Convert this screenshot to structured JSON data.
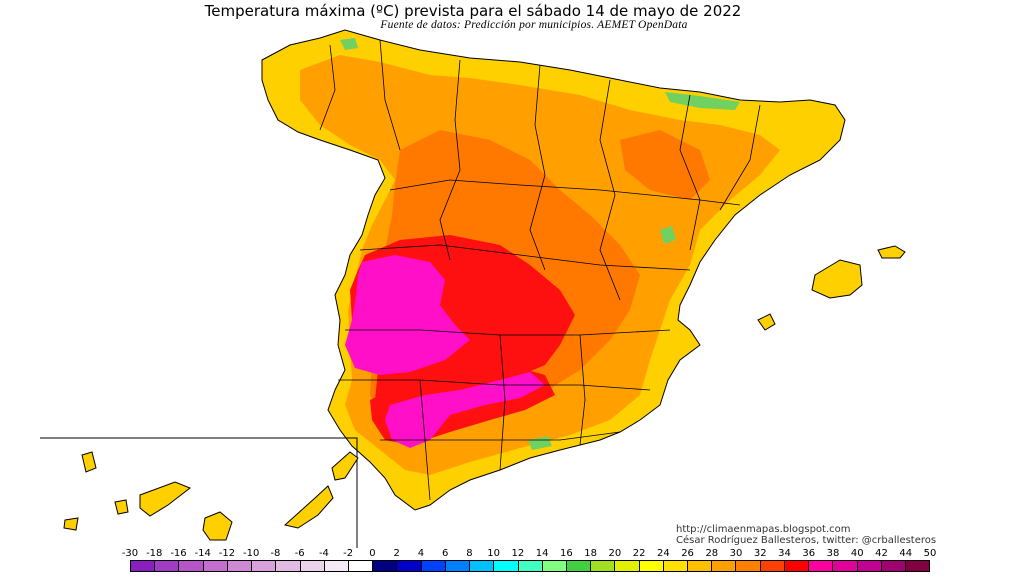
{
  "header": {
    "title": "Temperatura máxima (ºC) prevista para el sábado 14 de mayo de 2022",
    "subtitle": "Fuente de datos: Predicción por municipios. AEMET OpenData"
  },
  "credits": {
    "url": "http://climaenmapas.blogspot.com",
    "author": "César Rodríguez Ballesteros, twitter: @crballesteros"
  },
  "legend": {
    "ticks": [
      "-30",
      "-18",
      "-16",
      "-14",
      "-12",
      "-10",
      "-8",
      "-6",
      "-4",
      "-2",
      "0",
      "2",
      "4",
      "6",
      "8",
      "10",
      "12",
      "14",
      "16",
      "18",
      "20",
      "22",
      "24",
      "26",
      "28",
      "30",
      "32",
      "34",
      "36",
      "38",
      "40",
      "42",
      "44",
      "50"
    ],
    "colors": [
      "#8a1fbf",
      "#a03cc4",
      "#b555c9",
      "#c46fcf",
      "#cf88d4",
      "#d8a1db",
      "#e2bbe2",
      "#ecd3ec",
      "#f5e9f5",
      "#ffffff",
      "#000080",
      "#0000c8",
      "#0040ff",
      "#0080ff",
      "#00c0ff",
      "#00ffff",
      "#40ffc0",
      "#80ff80",
      "#40d040",
      "#a0e020",
      "#e0f000",
      "#ffff00",
      "#ffe000",
      "#ffc000",
      "#ffa000",
      "#ff8000",
      "#ff4000",
      "#ff0000",
      "#ff00a0",
      "#e0009a",
      "#c00090",
      "#a00070",
      "#800040"
    ]
  },
  "map_colors": {
    "warm_yellow": "#ffd400",
    "orange": "#ffa000",
    "dark_orange": "#ff7a00",
    "red": "#ff1010",
    "magenta": "#ff10c8",
    "green": "#60d060",
    "border": "#000000"
  }
}
